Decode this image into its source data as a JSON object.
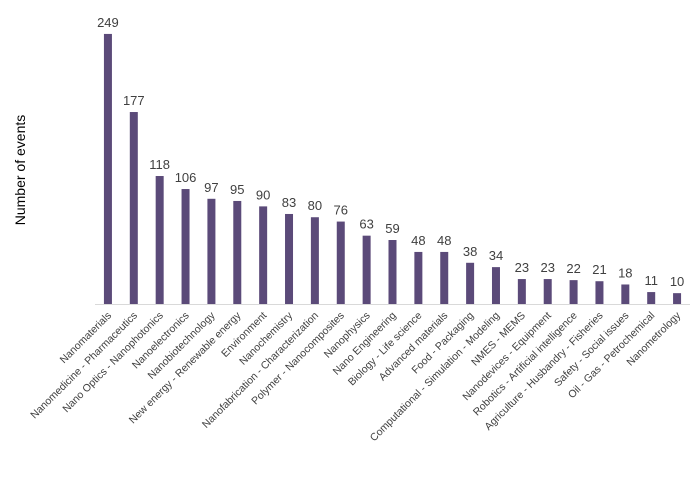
{
  "chart_data": {
    "type": "bar",
    "title": "",
    "xlabel": "",
    "ylabel": "Number of events",
    "ylim": [
      0,
      260
    ],
    "bar_color": "#5b4a79",
    "axis_color": "#d9d9d9",
    "grid": false,
    "categories": [
      "Nanomaterials",
      "Nanomedicine - Pharmaceutics",
      "Nano Optics - Nanophotonics",
      "Nanoelectronics",
      "Nanobiotechnology",
      "New energy - Renewable energy",
      "Environment",
      "Nanochemistry",
      "Nanofabrication - Characterization",
      "Polymer - Nanocomposites",
      "Nanophysics",
      "Nano Engineering",
      "Biology - Life science",
      "Advanced materials",
      "Food - Packaging",
      "Computational - Simulation - Modeling",
      "NMES - MEMS",
      "Nanodevices - Equipment",
      "Robotics - Artificial intelligence",
      "Agriculture - Husbandry - Fisheries",
      "Safety - Social issues",
      "Oil - Gas - Petrochemical",
      "Nanometrology"
    ],
    "values": [
      249,
      177,
      118,
      106,
      97,
      95,
      90,
      83,
      80,
      76,
      63,
      59,
      48,
      48,
      38,
      34,
      23,
      23,
      22,
      21,
      18,
      11,
      10
    ]
  }
}
